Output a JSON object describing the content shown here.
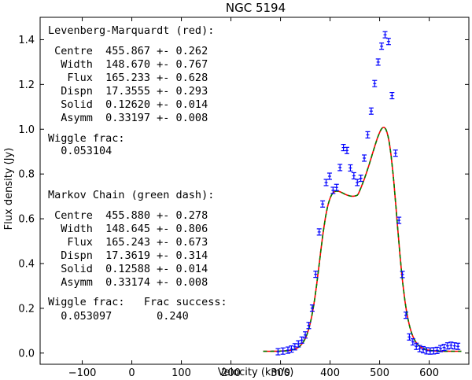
{
  "chart_data": {
    "type": "line",
    "title": "NGC 5194",
    "xlabel": "Velocity (km/s)",
    "ylabel": "Flux density (Jy)",
    "xlim": [
      -185,
      680
    ],
    "ylim": [
      -0.05,
      1.5
    ],
    "x_ticks": [
      -100,
      0,
      100,
      200,
      300,
      400,
      500,
      600
    ],
    "y_ticks": [
      0.0,
      0.2,
      0.4,
      0.6,
      0.8,
      1.0,
      1.2,
      1.4
    ],
    "x_tick_labels": [
      "−100",
      "0",
      "100",
      "200",
      "300",
      "400",
      "500",
      "600"
    ],
    "y_tick_labels": [
      "0.0",
      "0.2",
      "0.4",
      "0.6",
      "0.8",
      "1.0",
      "1.2",
      "1.4"
    ],
    "grid": false,
    "colors": {
      "data": "#0000ff",
      "lm_fit": "#ff0000",
      "mc_fit": "#008000"
    },
    "series": [
      {
        "type": "errorbar",
        "x": [
          295,
          305,
          315,
          322,
          329,
          336,
          343,
          350,
          357,
          364,
          371,
          378,
          385,
          392,
          399,
          406,
          413,
          420,
          427,
          434,
          441,
          448,
          455,
          462,
          469,
          476,
          483,
          490,
          497,
          504,
          511,
          518,
          525,
          532,
          539,
          546,
          553,
          560,
          567,
          574,
          581,
          588,
          595,
          602,
          609,
          616,
          623,
          630,
          637,
          644,
          651,
          658
        ],
        "y": [
          0.006,
          0.009,
          0.013,
          0.018,
          0.028,
          0.041,
          0.058,
          0.081,
          0.123,
          0.201,
          0.352,
          0.541,
          0.666,
          0.762,
          0.79,
          0.727,
          0.74,
          0.829,
          0.918,
          0.905,
          0.827,
          0.792,
          0.762,
          0.781,
          0.871,
          0.975,
          1.081,
          1.204,
          1.3,
          1.371,
          1.422,
          1.392,
          1.15,
          0.893,
          0.593,
          0.351,
          0.169,
          0.072,
          0.05,
          0.03,
          0.02,
          0.015,
          0.01,
          0.009,
          0.01,
          0.012,
          0.02,
          0.025,
          0.032,
          0.035,
          0.032,
          0.03
        ],
        "yerr": 0.014
      },
      {
        "name": "Levenberg-Marquardt (red)",
        "type": "fit",
        "params": {
          "centre": 455.867,
          "width": 148.67,
          "flux": 165.233,
          "dispn": 17.3555,
          "solid": 0.1262,
          "asymm": 0.33197,
          "wiggle_frac": 0.053104
        }
      },
      {
        "name": "Markov Chain (green dash)",
        "type": "fit",
        "params": {
          "centre": 455.88,
          "width": 148.645,
          "flux": 165.243,
          "dispn": 17.3619,
          "solid": 0.12588,
          "asymm": 0.33174,
          "wiggle_frac": 0.053097
        }
      }
    ],
    "annotations": [
      "Levenberg-Marquardt (red):",
      " Centre  455.867 +- 0.262",
      "  Width  148.670 +- 0.767",
      "   Flux  165.233 +- 0.628",
      "  Dispn  17.3555 +- 0.293",
      "  Solid  0.12620 +- 0.014",
      "  Asymm  0.33197 +- 0.008",
      "Wiggle frac:",
      "  0.053104",
      "Markov Chain (green dash):",
      " Centre  455.880 +- 0.278",
      "  Width  148.645 +- 0.806",
      "   Flux  165.243 +- 0.673",
      "  Dispn  17.3619 +- 0.314",
      "  Solid  0.12588 +- 0.014",
      "  Asymm  0.33174 +- 0.008",
      "Wiggle frac:   Frac success:",
      "  0.053097       0.240"
    ]
  }
}
